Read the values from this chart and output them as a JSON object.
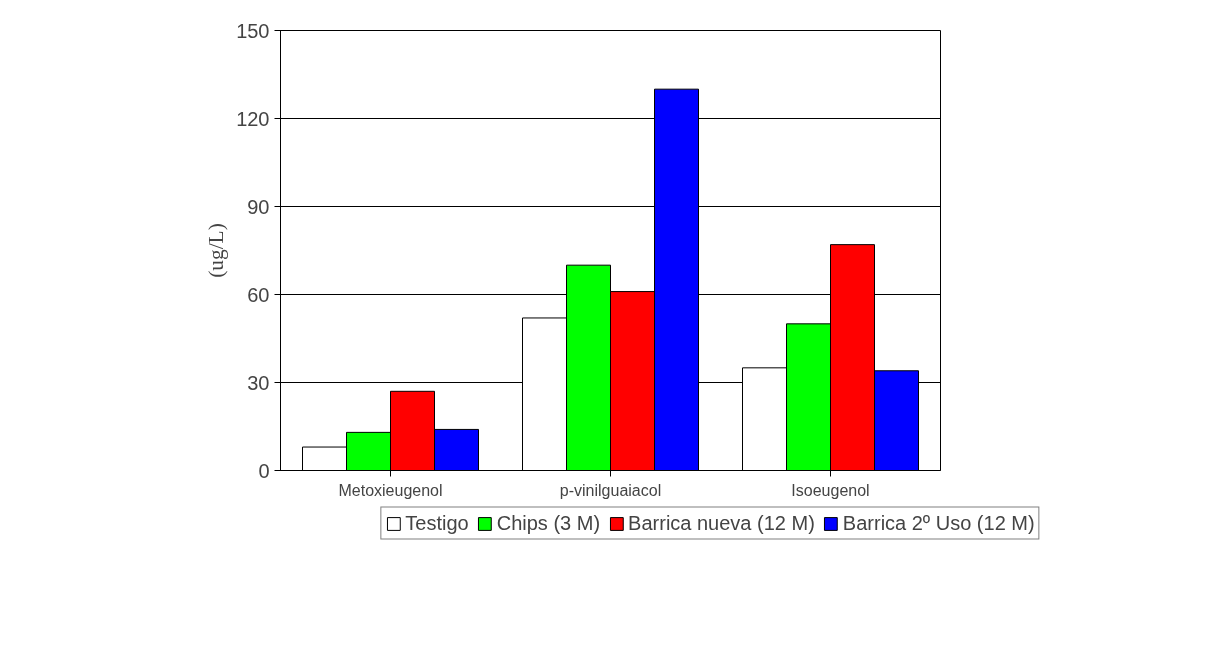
{
  "chart_data": {
    "type": "bar",
    "ylabel": "(ug/L)",
    "categories": [
      "Metoxieugenol",
      "p-vinilguaiacol",
      "Isoeugenol"
    ],
    "series": [
      {
        "name": "Testigo",
        "color": "#ffffff",
        "values": [
          8,
          52,
          35
        ]
      },
      {
        "name": "Chips (3 M)",
        "color": "#00ff00",
        "values": [
          13,
          70,
          50
        ]
      },
      {
        "name": "Barrica nueva (12 M)",
        "color": "#ff0000",
        "values": [
          27,
          61,
          77
        ]
      },
      {
        "name": "Barrica 2º Uso (12 M)",
        "color": "#0000ff",
        "values": [
          14,
          130,
          34
        ]
      }
    ],
    "ylim": [
      0,
      150
    ],
    "yticks": [
      0,
      30,
      60,
      90,
      120,
      150
    ],
    "grid": "y",
    "legend": "bottom"
  }
}
